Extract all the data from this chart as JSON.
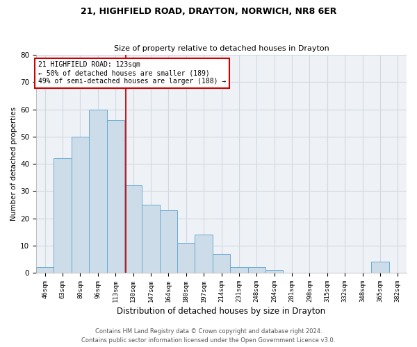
{
  "title1": "21, HIGHFIELD ROAD, DRAYTON, NORWICH, NR8 6ER",
  "title2": "Size of property relative to detached houses in Drayton",
  "xlabel": "Distribution of detached houses by size in Drayton",
  "ylabel": "Number of detached properties",
  "categories": [
    "46sqm",
    "63sqm",
    "80sqm",
    "96sqm",
    "113sqm",
    "130sqm",
    "147sqm",
    "164sqm",
    "180sqm",
    "197sqm",
    "214sqm",
    "231sqm",
    "248sqm",
    "264sqm",
    "281sqm",
    "298sqm",
    "315sqm",
    "332sqm",
    "348sqm",
    "365sqm",
    "382sqm"
  ],
  "values": [
    2,
    42,
    50,
    60,
    56,
    32,
    25,
    23,
    11,
    14,
    7,
    2,
    2,
    1,
    0,
    0,
    0,
    0,
    0,
    4,
    0
  ],
  "bar_color": "#ccdce8",
  "bar_edge_color": "#6aaad4",
  "red_line_x": 4.59,
  "annotation_line1": "21 HIGHFIELD ROAD: 123sqm",
  "annotation_line2": "← 50% of detached houses are smaller (189)",
  "annotation_line3": "49% of semi-detached houses are larger (188) →",
  "annotation_box_color": "#ffffff",
  "annotation_box_edge_color": "#cc0000",
  "red_line_color": "#cc0000",
  "footnote1": "Contains HM Land Registry data © Crown copyright and database right 2024.",
  "footnote2": "Contains public sector information licensed under the Open Government Licence v3.0.",
  "ylim": [
    0,
    80
  ],
  "yticks": [
    0,
    10,
    20,
    30,
    40,
    50,
    60,
    70,
    80
  ],
  "grid_color": "#d0d8e0",
  "background_color": "#eef2f6"
}
